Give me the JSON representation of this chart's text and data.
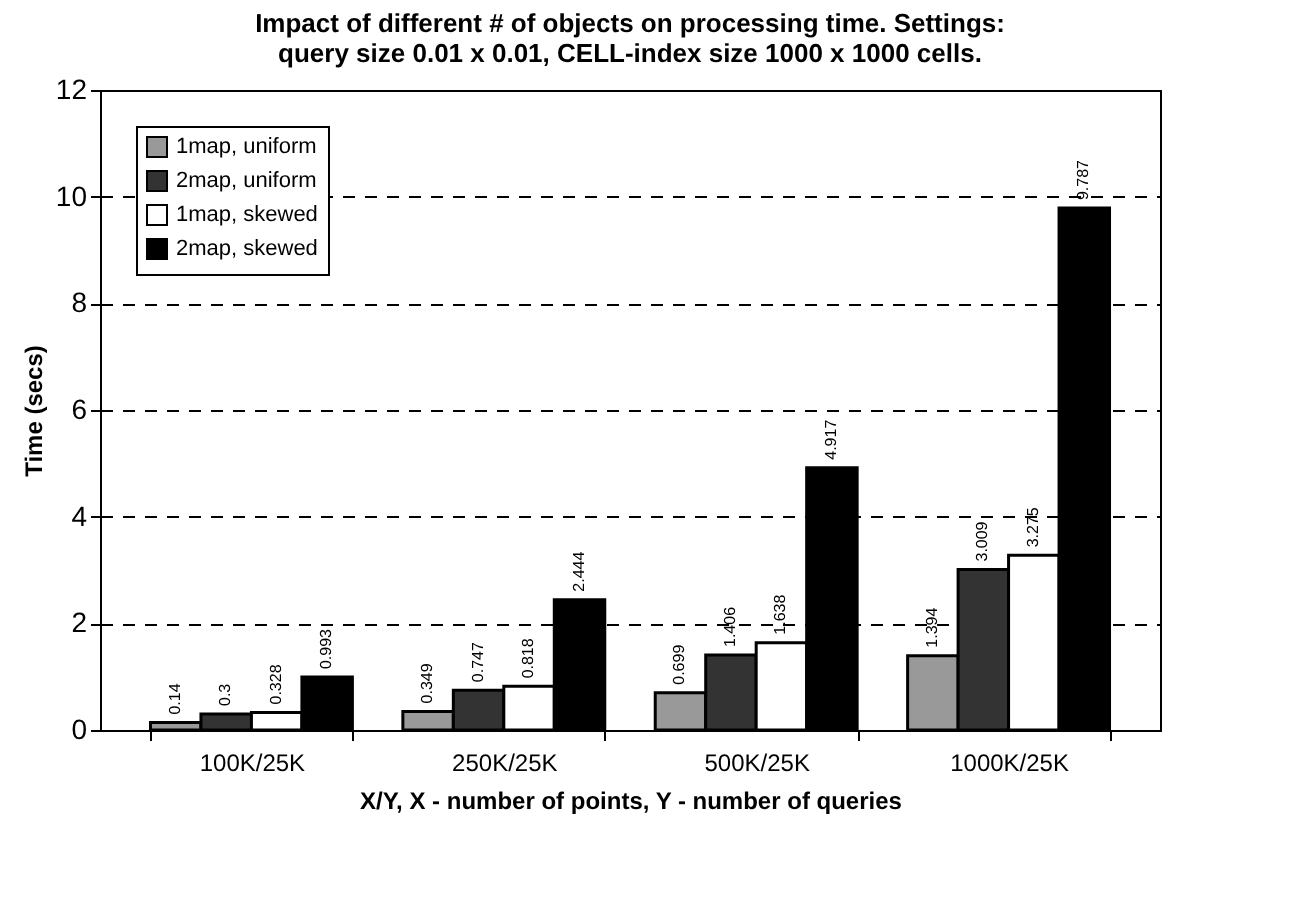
{
  "chart_data": {
    "type": "bar",
    "title": [
      "Impact of different # of objects on processing time.  Settings:",
      "query size 0.01 x 0.01, CELL-index size 1000 x 1000 cells."
    ],
    "xlabel": "X/Y, X - number of points, Y - number of queries",
    "ylabel": "Time (secs)",
    "categories": [
      "100K/25K",
      "250K/25K",
      "500K/25K",
      "1000K/25K"
    ],
    "series": [
      {
        "name": "1map, uniform",
        "color": "#999999",
        "values": [
          0.14,
          0.349,
          0.699,
          1.394
        ]
      },
      {
        "name": "2map, uniform",
        "color": "#333333",
        "values": [
          0.3,
          0.747,
          1.406,
          3.009
        ]
      },
      {
        "name": "1map, skewed",
        "color": "#ffffff",
        "values": [
          0.328,
          0.818,
          1.638,
          3.275
        ]
      },
      {
        "name": "2map, skewed",
        "color": "#000000",
        "values": [
          0.993,
          2.444,
          4.917,
          9.787
        ]
      }
    ],
    "ylim": [
      0,
      12
    ],
    "yticks": [
      0,
      2,
      4,
      6,
      8,
      10,
      12
    ],
    "grid": "y",
    "legend": "top left",
    "data_labels": true
  }
}
